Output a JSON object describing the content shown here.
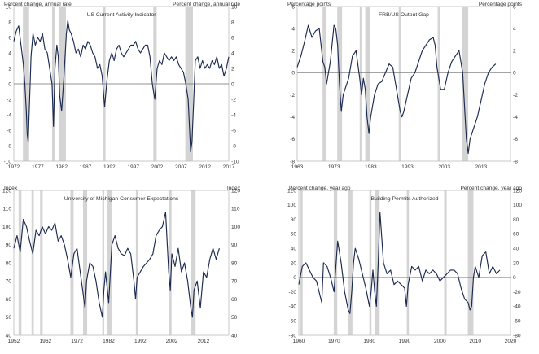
{
  "chart_data": [
    {
      "type": "line",
      "title": "US Current Activity Indicator",
      "unit_left": "Percent change, annual rate",
      "unit_right": "Percent change, annual rate",
      "xlim": [
        1972,
        2017
      ],
      "ylim": [
        -10,
        10
      ],
      "x_ticks": [
        "1972",
        "1977",
        "1982",
        "1987",
        "1992",
        "1997",
        "2002",
        "2007",
        "2012",
        "2017"
      ],
      "y_ticks": [
        "-10",
        "-8",
        "-6",
        "-4",
        "-2",
        "0",
        "2",
        "4",
        "6",
        "8",
        "10"
      ],
      "zero_line": true,
      "recessions": [
        [
          1973.9,
          1975.2
        ],
        [
          1980.0,
          1980.6
        ],
        [
          1981.5,
          1982.9
        ],
        [
          1990.6,
          1991.2
        ],
        [
          2001.2,
          2001.9
        ],
        [
          2007.9,
          2009.5
        ]
      ],
      "series": [
        {
          "name": "US Current Activity Indicator",
          "x": [
            1972.0,
            1972.5,
            1973.0,
            1973.5,
            1974.0,
            1974.3,
            1974.6,
            1974.8,
            1975.0,
            1975.3,
            1975.6,
            1976.0,
            1976.5,
            1977.0,
            1977.5,
            1978.0,
            1978.5,
            1979.0,
            1979.5,
            1980.0,
            1980.3,
            1980.6,
            1981.0,
            1981.3,
            1981.6,
            1982.0,
            1982.5,
            1983.0,
            1983.3,
            1983.6,
            1984.0,
            1984.5,
            1985.0,
            1985.5,
            1986.0,
            1986.5,
            1987.0,
            1987.5,
            1988.0,
            1988.5,
            1989.0,
            1989.5,
            1990.0,
            1990.5,
            1991.0,
            1991.5,
            1992.0,
            1992.5,
            1993.0,
            1993.5,
            1994.0,
            1994.5,
            1995.0,
            1995.5,
            1996.0,
            1996.5,
            1997.0,
            1997.5,
            1998.0,
            1998.5,
            1999.0,
            1999.5,
            2000.0,
            2000.5,
            2001.0,
            2001.5,
            2002.0,
            2002.5,
            2003.0,
            2003.5,
            2004.0,
            2004.5,
            2005.0,
            2005.5,
            2006.0,
            2006.5,
            2007.0,
            2007.5,
            2008.0,
            2008.5,
            2008.8,
            2009.0,
            2009.3,
            2009.6,
            2010.0,
            2010.5,
            2011.0,
            2011.5,
            2012.0,
            2012.5,
            2013.0,
            2013.5,
            2014.0,
            2014.5,
            2015.0,
            2015.5,
            2016.0,
            2016.5,
            2017.0
          ],
          "values": [
            5.5,
            6.8,
            7.5,
            5.0,
            2.5,
            0.0,
            -3.5,
            -6.5,
            -7.5,
            -2.0,
            3.5,
            6.5,
            5.0,
            6.0,
            5.5,
            6.5,
            4.5,
            4.0,
            2.0,
            0.0,
            -5.5,
            2.0,
            5.0,
            3.5,
            -1.5,
            -3.5,
            1.0,
            6.5,
            8.2,
            7.0,
            6.5,
            5.5,
            4.0,
            4.5,
            3.5,
            5.0,
            4.5,
            5.5,
            5.0,
            4.0,
            3.5,
            2.0,
            2.5,
            1.0,
            -3.0,
            0.5,
            3.0,
            4.0,
            3.0,
            4.5,
            5.0,
            4.0,
            3.5,
            4.0,
            4.5,
            5.0,
            5.0,
            5.5,
            4.5,
            4.0,
            4.5,
            5.0,
            5.0,
            3.5,
            0.0,
            -2.0,
            2.0,
            3.0,
            2.5,
            4.0,
            3.5,
            3.0,
            3.5,
            3.0,
            3.5,
            2.5,
            2.0,
            1.5,
            0.0,
            -2.0,
            -6.0,
            -8.8,
            -7.5,
            -3.0,
            3.0,
            3.5,
            2.0,
            3.0,
            2.0,
            2.5,
            2.0,
            3.0,
            2.5,
            3.5,
            2.0,
            2.5,
            1.0,
            2.0,
            3.5
          ]
        }
      ]
    },
    {
      "type": "line",
      "title": "FRB/US Output Gap",
      "unit_left": "Percentage points",
      "unit_right": "Percentage points",
      "xlim": [
        1963,
        2021
      ],
      "ylim": [
        -8,
        6
      ],
      "x_ticks": [
        "1963",
        "1973",
        "1983",
        "1993",
        "2003",
        "2013"
      ],
      "y_ticks": [
        "-8",
        "-6",
        "-4",
        "-2",
        "0",
        "2",
        "4",
        "6"
      ],
      "zero_line": true,
      "recessions": [
        [
          1969.9,
          1970.9
        ],
        [
          1973.9,
          1975.2
        ],
        [
          1980.0,
          1980.6
        ],
        [
          1981.5,
          1982.9
        ],
        [
          1990.6,
          1991.2
        ],
        [
          2001.2,
          2001.9
        ],
        [
          2007.9,
          2009.5
        ]
      ],
      "series": [
        {
          "name": "FRB/US Output Gap",
          "x": [
            1963.0,
            1964.0,
            1965.0,
            1966.0,
            1967.0,
            1968.0,
            1969.0,
            1970.0,
            1970.5,
            1971.0,
            1972.0,
            1973.0,
            1973.5,
            1974.0,
            1974.5,
            1975.0,
            1975.5,
            1976.0,
            1977.0,
            1978.0,
            1979.0,
            1980.0,
            1980.5,
            1981.0,
            1981.5,
            1982.0,
            1982.5,
            1983.0,
            1984.0,
            1985.0,
            1986.0,
            1987.0,
            1988.0,
            1989.0,
            1990.0,
            1991.0,
            1991.5,
            1992.0,
            1993.0,
            1994.0,
            1995.0,
            1996.0,
            1997.0,
            1998.0,
            1999.0,
            2000.0,
            2000.5,
            2001.0,
            2002.0,
            2003.0,
            2004.0,
            2005.0,
            2006.0,
            2007.0,
            2008.0,
            2008.5,
            2009.0,
            2009.5,
            2010.0,
            2011.0,
            2012.0,
            2013.0,
            2014.0,
            2015.0,
            2016.0,
            2017.0
          ],
          "values": [
            0.5,
            1.5,
            2.8,
            4.3,
            3.2,
            3.8,
            4.0,
            1.0,
            0.5,
            -1.0,
            1.0,
            4.3,
            4.0,
            2.5,
            -1.0,
            -3.5,
            -2.0,
            -1.5,
            -0.5,
            1.5,
            2.0,
            -0.5,
            -2.0,
            -0.5,
            -1.5,
            -4.0,
            -5.5,
            -4.0,
            -2.0,
            -1.0,
            -0.8,
            0.0,
            0.8,
            0.5,
            -1.5,
            -3.5,
            -4.0,
            -3.5,
            -2.0,
            -0.5,
            0.0,
            1.0,
            2.0,
            2.5,
            3.0,
            3.2,
            2.5,
            0.5,
            -1.5,
            -1.5,
            0.0,
            1.0,
            1.5,
            2.0,
            0.0,
            -3.0,
            -6.0,
            -7.3,
            -6.0,
            -5.0,
            -4.0,
            -2.5,
            -1.0,
            0.0,
            0.5,
            0.8
          ]
        }
      ]
    },
    {
      "type": "line",
      "title": "University of Michigan Consumer Expectations",
      "unit_left": "Index",
      "unit_right": "Index",
      "xlim": [
        1952,
        2020
      ],
      "ylim": [
        40,
        120
      ],
      "x_ticks": [
        "1952",
        "1962",
        "1972",
        "1982",
        "1992",
        "2002",
        "2012"
      ],
      "y_ticks": [
        "40",
        "50",
        "60",
        "70",
        "80",
        "90",
        "100",
        "110",
        "120"
      ],
      "zero_line": false,
      "recessions": [
        [
          1953.5,
          1954.4
        ],
        [
          1957.6,
          1958.3
        ],
        [
          1960.3,
          1961.1
        ],
        [
          1969.9,
          1970.9
        ],
        [
          1973.9,
          1975.2
        ],
        [
          1980.0,
          1980.6
        ],
        [
          1981.5,
          1982.9
        ],
        [
          1990.6,
          1991.2
        ],
        [
          2001.2,
          2001.9
        ],
        [
          2007.9,
          2009.5
        ]
      ],
      "series": [
        {
          "name": "University of Michigan Consumer Expectations",
          "x": [
            1952.0,
            1953.0,
            1954.0,
            1955.0,
            1956.0,
            1957.0,
            1958.0,
            1959.0,
            1960.0,
            1961.0,
            1962.0,
            1963.0,
            1964.0,
            1965.0,
            1966.0,
            1967.0,
            1968.0,
            1969.0,
            1970.0,
            1971.0,
            1972.0,
            1973.0,
            1974.0,
            1974.5,
            1975.0,
            1976.0,
            1977.0,
            1978.0,
            1979.0,
            1980.0,
            1980.5,
            1981.0,
            1982.0,
            1983.0,
            1984.0,
            1985.0,
            1986.0,
            1987.0,
            1988.0,
            1989.0,
            1990.0,
            1990.5,
            1991.0,
            1992.0,
            1993.0,
            1994.0,
            1995.0,
            1996.0,
            1997.0,
            1998.0,
            1999.0,
            2000.0,
            2001.0,
            2001.5,
            2002.0,
            2003.0,
            2004.0,
            2005.0,
            2006.0,
            2007.0,
            2008.0,
            2008.5,
            2009.0,
            2010.0,
            2011.0,
            2012.0,
            2013.0,
            2014.0,
            2015.0,
            2016.0,
            2017.0
          ],
          "values": [
            88.0,
            95.0,
            86.0,
            104.0,
            100.0,
            92.0,
            85.0,
            98.0,
            95.0,
            100.0,
            96.0,
            100.0,
            98.0,
            102.0,
            92.0,
            95.0,
            90.0,
            82.0,
            72.0,
            85.0,
            88.0,
            75.0,
            62.0,
            55.0,
            70.0,
            80.0,
            78.0,
            70.0,
            58.0,
            50.0,
            65.0,
            75.0,
            58.0,
            90.0,
            95.0,
            88.0,
            85.0,
            84.0,
            88.0,
            85.0,
            70.0,
            60.0,
            72.0,
            75.0,
            78.0,
            80.0,
            82.0,
            85.0,
            95.0,
            98.0,
            100.0,
            108.0,
            75.0,
            65.0,
            85.0,
            78.0,
            88.0,
            75.0,
            80.0,
            70.0,
            55.0,
            50.0,
            65.0,
            70.0,
            55.0,
            75.0,
            72.0,
            82.0,
            88.0,
            82.0,
            88.0
          ]
        }
      ]
    },
    {
      "type": "line",
      "title": "Building Permits Authorized",
      "unit_left": "Percent change, year ago",
      "unit_right": "Percent change, year ago",
      "xlim": [
        1960,
        2020
      ],
      "ylim": [
        -80,
        120
      ],
      "x_ticks": [
        "1960",
        "1970",
        "1980",
        "1990",
        "2000",
        "2010",
        "2020"
      ],
      "y_ticks": [
        "-80",
        "-60",
        "-40",
        "-20",
        "0",
        "20",
        "40",
        "60",
        "80",
        "100",
        "120"
      ],
      "zero_line": true,
      "recessions": [
        [
          1960.3,
          1961.1
        ],
        [
          1969.9,
          1970.9
        ],
        [
          1973.9,
          1975.2
        ],
        [
          1980.0,
          1980.6
        ],
        [
          1981.5,
          1982.9
        ],
        [
          1990.6,
          1991.2
        ],
        [
          2001.2,
          2001.9
        ],
        [
          2007.9,
          2009.5
        ]
      ],
      "series": [
        {
          "name": "Building Permits Authorized",
          "x": [
            1960.0,
            1961.0,
            1962.0,
            1963.0,
            1964.0,
            1965.0,
            1966.0,
            1966.5,
            1967.0,
            1968.0,
            1969.0,
            1970.0,
            1971.0,
            1972.0,
            1973.0,
            1974.0,
            1974.5,
            1975.0,
            1975.5,
            1976.0,
            1977.0,
            1978.0,
            1979.0,
            1980.0,
            1980.5,
            1981.0,
            1981.5,
            1982.0,
            1982.5,
            1983.0,
            1984.0,
            1985.0,
            1986.0,
            1987.0,
            1988.0,
            1989.0,
            1990.0,
            1990.5,
            1991.0,
            1992.0,
            1993.0,
            1994.0,
            1995.0,
            1996.0,
            1997.0,
            1998.0,
            1999.0,
            2000.0,
            2001.0,
            2002.0,
            2003.0,
            2004.0,
            2005.0,
            2006.0,
            2007.0,
            2008.0,
            2008.5,
            2009.0,
            2009.5,
            2010.0,
            2011.0,
            2012.0,
            2013.0,
            2014.0,
            2015.0,
            2016.0,
            2017.0
          ],
          "values": [
            -10.0,
            15.0,
            20.0,
            10.0,
            0.0,
            -5.0,
            -25.0,
            -35.0,
            20.0,
            15.0,
            0.0,
            -20.0,
            50.0,
            20.0,
            -20.0,
            -45.0,
            -50.0,
            -20.0,
            20.0,
            40.0,
            25.0,
            5.0,
            -15.0,
            -40.0,
            -20.0,
            10.0,
            -20.0,
            -40.0,
            20.0,
            90.0,
            20.0,
            5.0,
            10.0,
            -10.0,
            -5.0,
            -10.0,
            -15.0,
            -40.0,
            -10.0,
            15.0,
            10.0,
            15.0,
            -5.0,
            10.0,
            5.0,
            10.0,
            5.0,
            -5.0,
            0.0,
            5.0,
            10.0,
            10.0,
            5.0,
            -15.0,
            -30.0,
            -35.0,
            -45.0,
            -40.0,
            0.0,
            15.0,
            0.0,
            30.0,
            35.0,
            5.0,
            15.0,
            5.0,
            10.0
          ]
        }
      ]
    }
  ]
}
